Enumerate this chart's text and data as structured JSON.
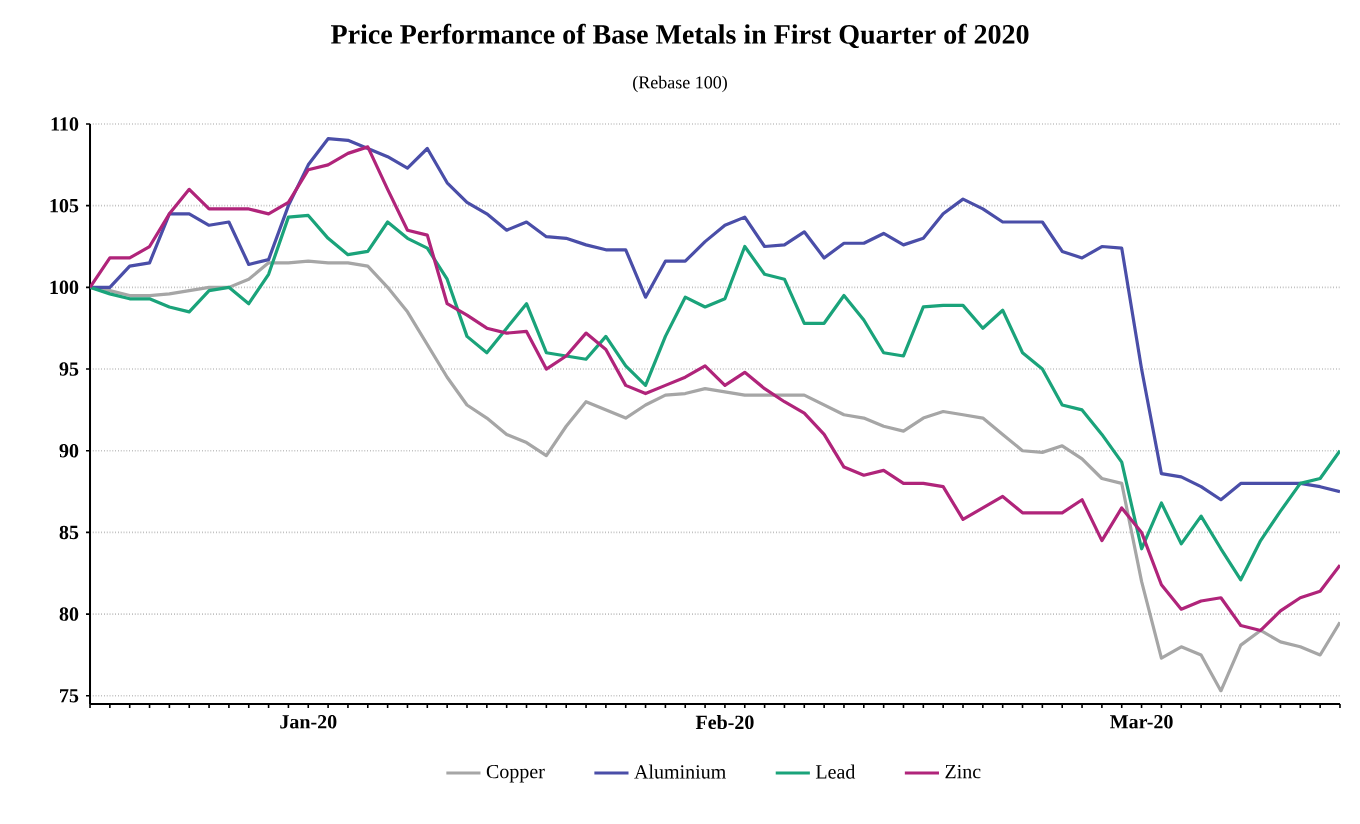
{
  "chart_data": {
    "type": "line",
    "title": "Price Performance of Base Metals in First Quarter of 2020",
    "subtitle": "(Rebase 100)",
    "categories": [
      null,
      null,
      null,
      null,
      null,
      null,
      null,
      null,
      null,
      null,
      null,
      "Jan-20",
      null,
      null,
      null,
      null,
      null,
      null,
      null,
      null,
      null,
      null,
      null,
      null,
      null,
      null,
      null,
      null,
      null,
      null,
      null,
      null,
      "Feb-20",
      null,
      null,
      null,
      null,
      null,
      null,
      null,
      null,
      null,
      null,
      null,
      null,
      null,
      null,
      null,
      null,
      null,
      null,
      null,
      null,
      "Mar-20",
      null,
      null,
      null,
      null,
      null,
      null,
      null,
      null,
      null,
      null
    ],
    "ylim": [
      74.5,
      110
    ],
    "yticks": [
      75,
      80,
      85,
      90,
      95,
      100,
      105,
      110
    ],
    "grid": "y",
    "legend": "bottom",
    "line_style": "solid",
    "series": [
      {
        "name": "Copper",
        "color": "#a6a6a6",
        "values": [
          100,
          99.8,
          99.5,
          99.5,
          99.6,
          99.8,
          100,
          100,
          100.5,
          101.5,
          101.5,
          101.6,
          101.5,
          101.5,
          101.3,
          100,
          98.5,
          96.5,
          94.5,
          92.8,
          92,
          91,
          90.5,
          89.7,
          91.5,
          93,
          92.5,
          92,
          92.8,
          93.4,
          93.5,
          93.8,
          93.6,
          93.4,
          93.4,
          93.4,
          93.4,
          92.8,
          92.2,
          92,
          91.5,
          91.2,
          92,
          92.4,
          92.2,
          92,
          91,
          90,
          89.9,
          90.3,
          89.5,
          88.3,
          88,
          82,
          77.3,
          78,
          77.5,
          75.3,
          78.1,
          79,
          78.3,
          78,
          77.5,
          79.5
        ]
      },
      {
        "name": "Aluminium",
        "color": "#4a4ea8",
        "values": [
          100,
          100,
          101.3,
          101.5,
          104.5,
          104.5,
          103.8,
          104,
          101.4,
          101.7,
          105,
          107.5,
          109.1,
          109,
          108.5,
          108,
          107.3,
          108.5,
          106.4,
          105.2,
          104.5,
          103.5,
          104,
          103.1,
          103,
          102.6,
          102.3,
          102.3,
          99.4,
          101.6,
          101.6,
          102.8,
          103.8,
          104.3,
          102.5,
          102.6,
          103.4,
          101.8,
          102.7,
          102.7,
          103.3,
          102.6,
          103,
          104.5,
          105.4,
          104.8,
          104,
          104,
          104,
          102.2,
          101.8,
          102.5,
          102.4,
          95,
          88.6,
          88.4,
          87.8,
          87,
          88,
          88,
          88,
          88,
          87.8,
          87.5
        ]
      },
      {
        "name": "Lead",
        "color": "#1aa37a",
        "values": [
          100,
          99.6,
          99.3,
          99.3,
          98.8,
          98.5,
          99.8,
          100,
          99,
          100.8,
          104.3,
          104.4,
          103,
          102,
          102.2,
          104,
          103,
          102.4,
          100.5,
          97,
          96,
          97.5,
          99,
          96,
          95.8,
          95.6,
          97,
          95.2,
          94,
          97,
          99.4,
          98.8,
          99.3,
          102.5,
          100.8,
          100.5,
          97.8,
          97.8,
          99.5,
          98,
          96,
          95.8,
          98.8,
          98.9,
          98.9,
          97.5,
          98.6,
          96,
          95,
          92.8,
          92.5,
          91,
          89.3,
          84,
          86.8,
          84.3,
          86,
          84,
          82.1,
          84.5,
          86.3,
          88,
          88.3,
          90
        ]
      },
      {
        "name": "Zinc",
        "color": "#b0247a",
        "values": [
          100,
          101.8,
          101.8,
          102.5,
          104.5,
          106,
          104.8,
          104.8,
          104.8,
          104.5,
          105.2,
          107.2,
          107.5,
          108.2,
          108.6,
          106,
          103.5,
          103.2,
          99,
          98.3,
          97.5,
          97.2,
          97.3,
          95,
          95.8,
          97.2,
          96.2,
          94,
          93.5,
          94,
          94.5,
          95.2,
          94,
          94.8,
          93.8,
          93,
          92.3,
          91,
          89,
          88.5,
          88.8,
          88,
          88,
          87.8,
          85.8,
          86.5,
          87.2,
          86.2,
          86.2,
          86.2,
          87,
          84.5,
          86.5,
          85,
          81.8,
          80.3,
          80.8,
          81,
          79.3,
          79,
          80.2,
          81,
          81.4,
          83
        ]
      }
    ]
  }
}
